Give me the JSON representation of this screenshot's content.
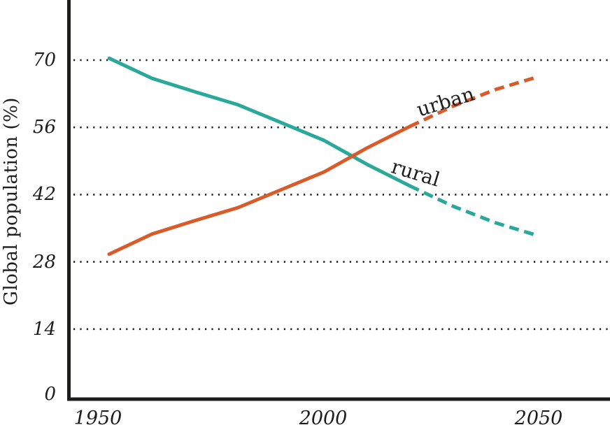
{
  "chart_data": {
    "type": "line",
    "title": "",
    "ylabel": "Global population (%)",
    "xlabel": "",
    "yticks": [
      0,
      14,
      28,
      42,
      56,
      70
    ],
    "ytick_labels": [
      "0",
      "14",
      "28",
      "42",
      "56",
      "70"
    ],
    "xticks": [
      1950,
      2000,
      2050
    ],
    "xtick_labels": [
      "1950",
      "2000",
      "2050"
    ],
    "x": [
      1950,
      1960,
      1970,
      1980,
      1990,
      2000,
      2010,
      2020,
      2030,
      2040,
      2050
    ],
    "series": [
      {
        "name": "rural",
        "label": "rural",
        "color": "#2aa89a",
        "values": [
          70.4,
          66.2,
          63.4,
          60.7,
          57.0,
          53.3,
          48.3,
          43.8,
          39.6,
          36.1,
          33.4
        ],
        "projection_from": 2020,
        "style_before": "solid",
        "style_after": "dashed"
      },
      {
        "name": "urban",
        "label": "urban",
        "color": "#d95b29",
        "values": [
          29.6,
          33.8,
          36.6,
          39.3,
          43.0,
          46.7,
          51.7,
          56.2,
          60.4,
          63.9,
          66.6
        ],
        "projection_from": 2020,
        "style_before": "solid",
        "style_after": "dashed"
      }
    ],
    "ylim": [
      0,
      79
    ],
    "xlim": [
      1943,
      2066
    ],
    "grid": "horizontal dotted lines at each y tick (except 0)",
    "legend_position": "inline labels on lines",
    "axis_color": "#1d1d1b",
    "gridline_color": "#1d1d1b",
    "background_color": "#ffffff"
  }
}
